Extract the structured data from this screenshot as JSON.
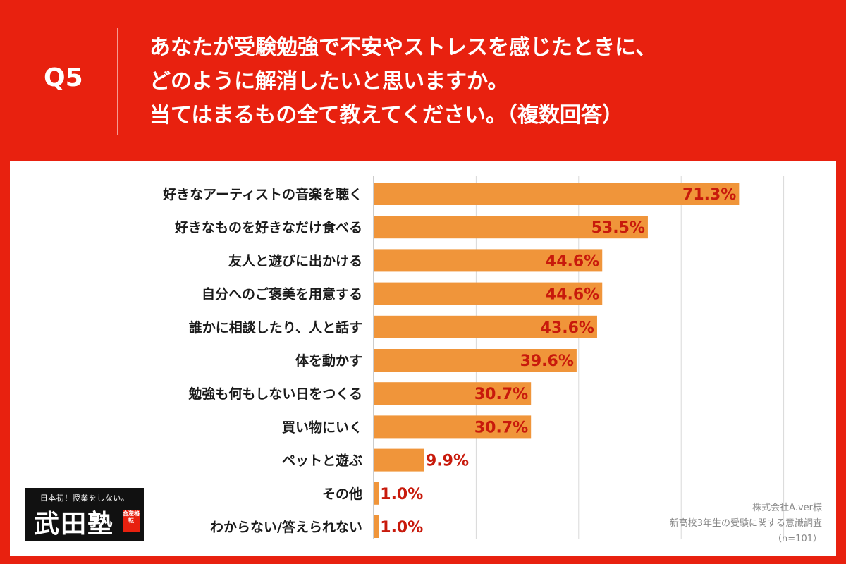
{
  "header": {
    "q_number": "Q5",
    "question_lines": [
      "あなたが受験勉強で不安やストレスを感じたときに、",
      "どのように解消したいと思いますか。",
      "当てはまるもの全て教えてください。（複数回答）"
    ]
  },
  "chart_data": {
    "type": "bar",
    "orientation": "horizontal",
    "categories": [
      "好きなアーティストの音楽を聴く",
      "好きなものを好きなだけ食べる",
      "友人と遊びに出かける",
      "自分へのご褒美を用意する",
      "誰かに相談したり、人と話す",
      "体を動かす",
      "勉強も何もしない日をつくる",
      "買い物にいく",
      "ペットと遊ぶ",
      "その他",
      "わからない/答えられない"
    ],
    "values": [
      71.3,
      53.5,
      44.6,
      44.6,
      43.6,
      39.6,
      30.7,
      30.7,
      9.9,
      1.0,
      1.0
    ],
    "value_labels": [
      "71.3%",
      "53.5%",
      "44.6%",
      "44.6%",
      "43.6%",
      "39.6%",
      "30.7%",
      "30.7%",
      "9.9%",
      "1.0%",
      "1.0%"
    ],
    "xlim": [
      0,
      80
    ],
    "grid": true,
    "bar_color": "#f0953a",
    "label_color": "#c81a0c"
  },
  "source": {
    "company": "株式会社A.ver様",
    "survey": "新高校3年生の受験に関する意識調査",
    "n": "（n=101）"
  },
  "logo": {
    "tagline": "日本初！授業をしない。",
    "name": "武田塾",
    "badge": "合逆格転"
  },
  "colors": {
    "background": "#e8210f",
    "panel": "#ffffff",
    "bar": "#f0953a",
    "value_text": "#c81a0c"
  }
}
